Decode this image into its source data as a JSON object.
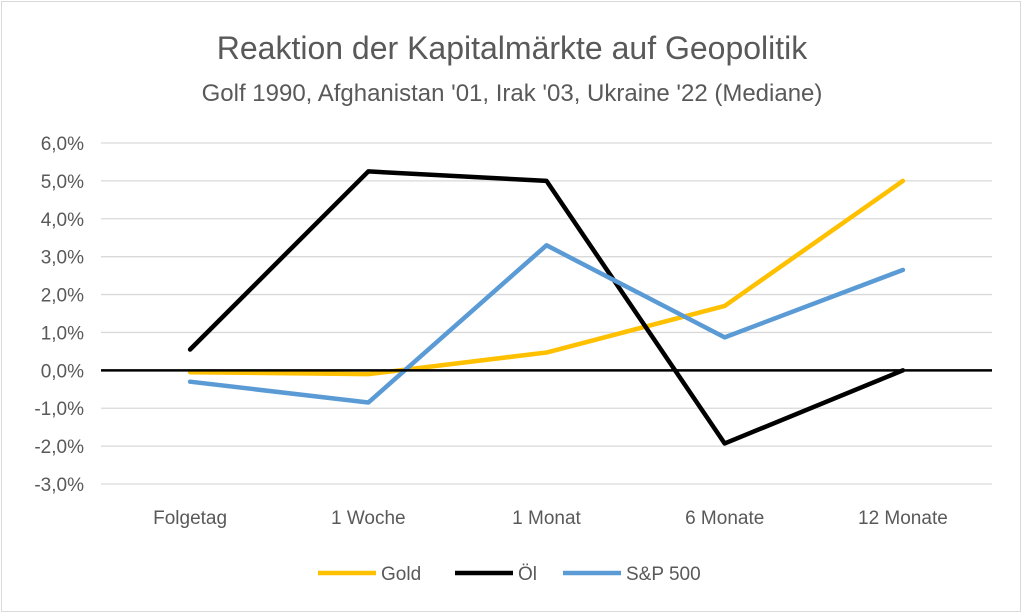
{
  "chart_data": {
    "type": "line",
    "title": "Reaktion der Kapitalmärkte auf Geopolitik",
    "subtitle": "Golf 1990, Afghanistan '01, Irak '03, Ukraine '22 (Mediane)",
    "categories": [
      "Folgetag",
      "1 Woche",
      "1 Monat",
      "6 Monate",
      "12 Monate"
    ],
    "ylim": [
      -3.0,
      6.0
    ],
    "yticks": [
      "6,0%",
      "5,0%",
      "4,0%",
      "3,0%",
      "2,0%",
      "1,0%",
      "0,0%",
      "-1,0%",
      "-2,0%",
      "-3,0%"
    ],
    "ytick_values": [
      6,
      5,
      4,
      3,
      2,
      1,
      0,
      -1,
      -2,
      -3
    ],
    "grid": true,
    "legend_position": "bottom",
    "series": [
      {
        "name": "Gold",
        "color": "#FFC000",
        "values": [
          -0.05,
          -0.1,
          0.47,
          1.7,
          5.0
        ]
      },
      {
        "name": "Öl",
        "color": "#000000",
        "values": [
          0.55,
          5.25,
          5.0,
          -1.93,
          0.0
        ]
      },
      {
        "name": "S&P 500",
        "color": "#5B9BD5",
        "values": [
          -0.3,
          -0.85,
          3.3,
          0.87,
          2.65
        ]
      }
    ]
  }
}
